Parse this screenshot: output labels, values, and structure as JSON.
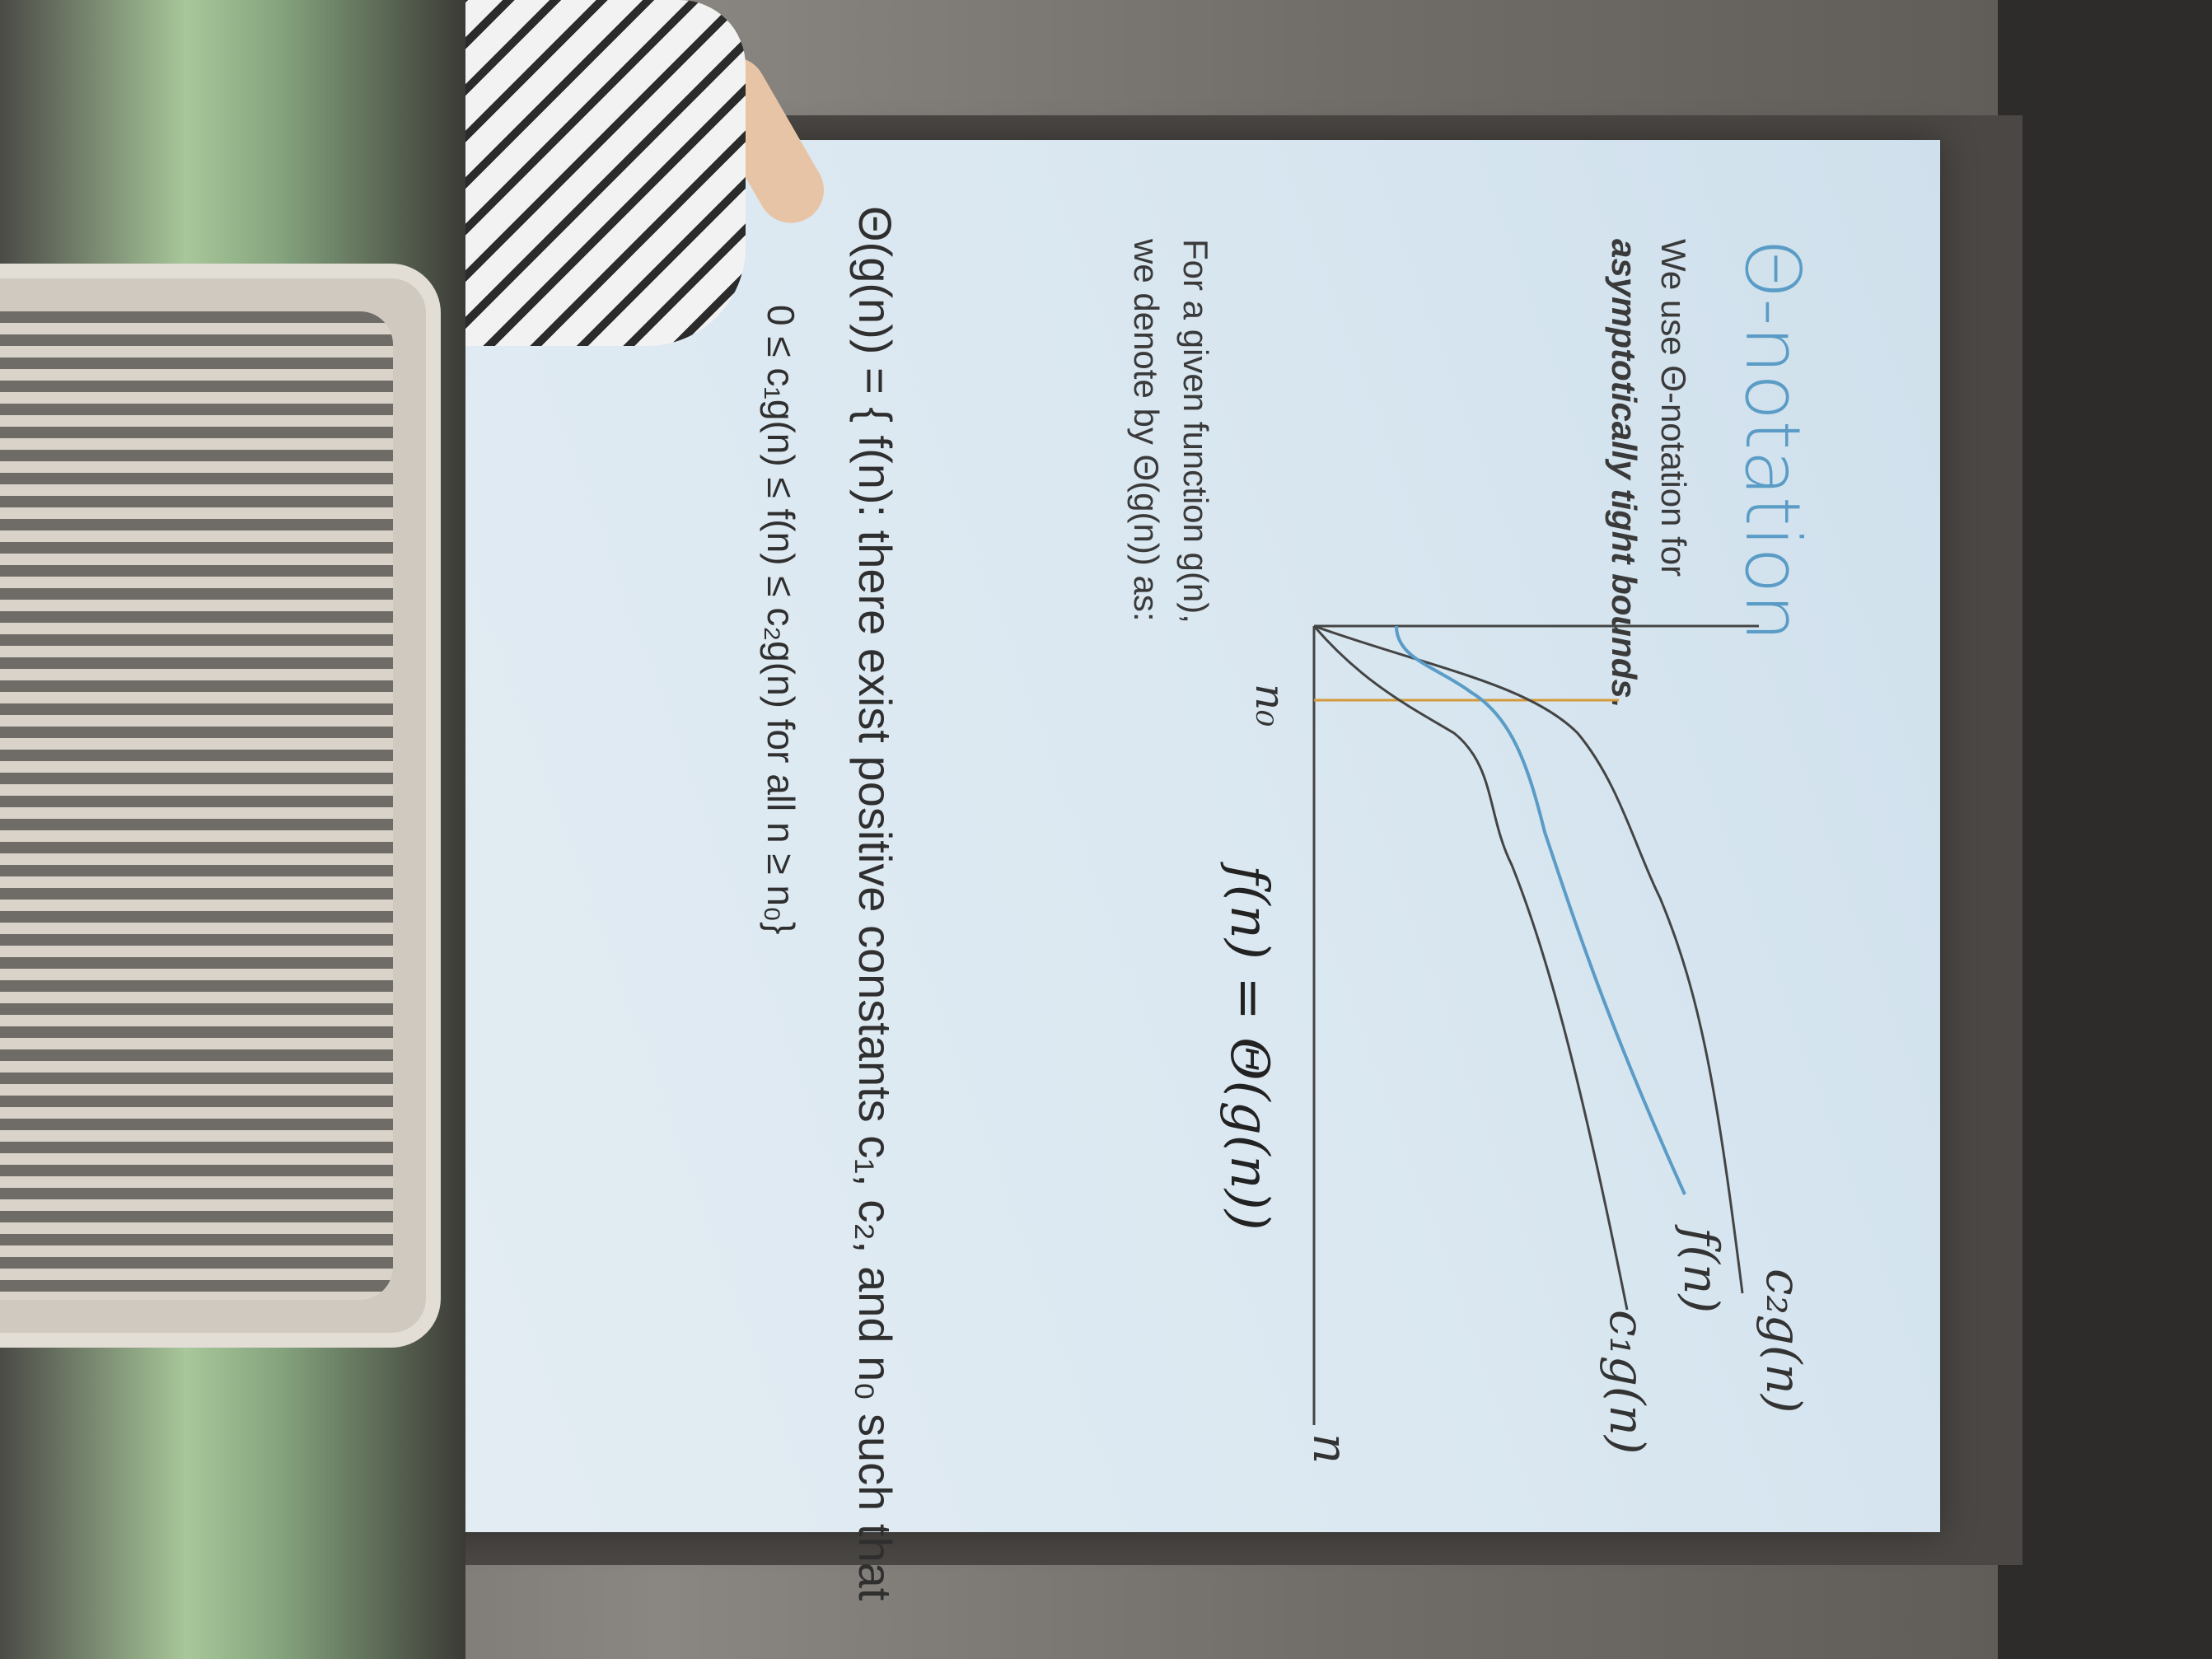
{
  "slide": {
    "title": "Θ-notation",
    "line1": "We use Θ-notation for",
    "line2": "asymptotically tight bounds.",
    "line3": "For a given function g(n),",
    "line4": "we denote by Θ(g(n)) as:",
    "definition": "Θ(g(n)) = { f(n): there exist positive constants c₁, c₂, and n₀ such that",
    "inequality": "0 ≤ c₁g(n) ≤ f(n) ≤ c₂g(n) for all n ≥ n₀}"
  },
  "graph": {
    "label_c2g": "c₂g(n)",
    "label_f": "f(n)",
    "label_c1g": "c₁g(n)",
    "label_n": "n",
    "label_n0": "n₀",
    "caption": "f(n) = Θ(g(n))"
  },
  "colors": {
    "title_blue": "#5a9cc6",
    "curve_f": "#5a9cc6",
    "n0_line": "#d49a3a"
  }
}
